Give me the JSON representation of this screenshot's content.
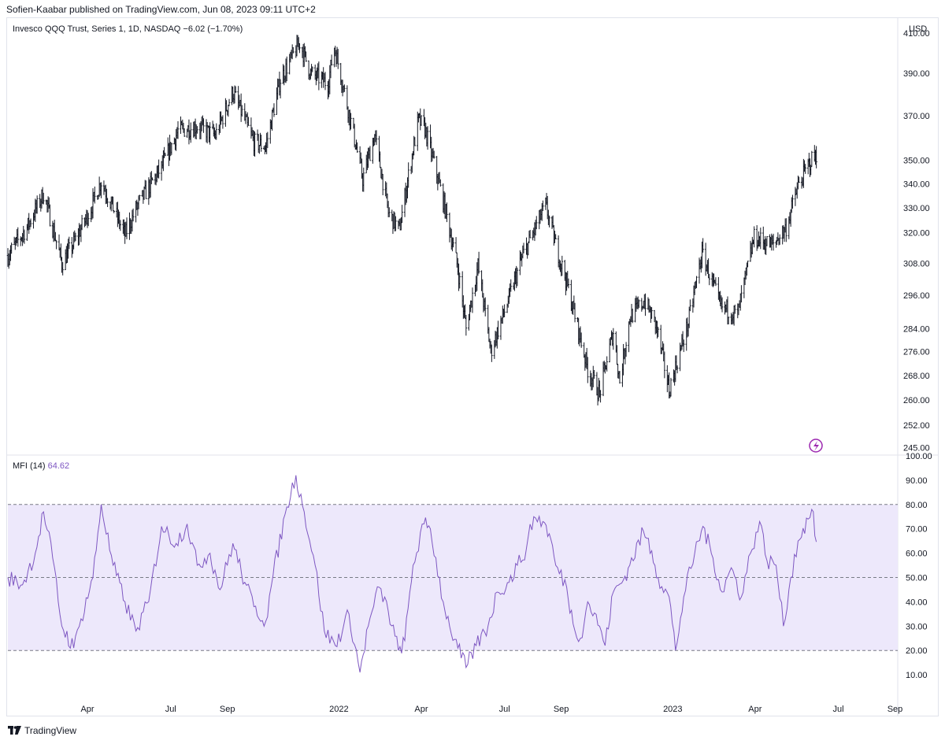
{
  "header": {
    "published": "Sofien-Kaabar published on TradingView.com, Jun 08, 2023 09:11 UTC+2"
  },
  "footer": {
    "brand": "TradingView"
  },
  "colors": {
    "bars": "#131722",
    "mfi_line": "#7e57c2",
    "band_fill": "#ede8fb",
    "lightning": "#9c27b0",
    "grid": "#e0e3eb"
  },
  "icons": {
    "lightning": "lightning-icon",
    "logo": "tradingview-logo-icon"
  },
  "chart_data": [
    {
      "type": "ohlc",
      "title": "Invesco QQQ Trust, Series 1, 1D, NASDAQ",
      "change": "−6.02 (−1.70%)",
      "currency": "USD",
      "y_scale": "log",
      "ylim": [
        243,
        418
      ],
      "y_ticks": [
        "410.00",
        "390.00",
        "370.00",
        "350.00",
        "340.00",
        "330.00",
        "320.00",
        "308.00",
        "296.00",
        "284.00",
        "276.00",
        "268.00",
        "260.00",
        "252.00",
        "245.00"
      ],
      "x_ticks": [
        "Apr",
        "Jul",
        "Sep",
        "2022",
        "Apr",
        "Jul",
        "Sep",
        "2023",
        "Apr",
        "Jul",
        "Sep"
      ],
      "x_tick_dates": [
        "2021-04-01",
        "2021-07-01",
        "2021-09-01",
        "2022-01-01",
        "2022-04-01",
        "2022-07-01",
        "2022-09-01",
        "2023-01-01",
        "2023-04-01",
        "2023-07-01",
        "2023-09-01"
      ],
      "x_range": [
        "2021-01-04",
        "2023-09-04"
      ],
      "series": [
        {
          "values": [
            [
              "2021-01-04",
              311
            ],
            [
              "2021-01-25",
              322
            ],
            [
              "2021-02-12",
              336
            ],
            [
              "2021-03-04",
              308
            ],
            [
              "2021-03-19",
              317
            ],
            [
              "2021-04-05",
              330
            ],
            [
              "2021-04-16",
              341
            ],
            [
              "2021-05-12",
              319
            ],
            [
              "2021-05-26",
              331
            ],
            [
              "2021-06-21",
              347
            ],
            [
              "2021-07-09",
              363
            ],
            [
              "2021-07-30",
              365
            ],
            [
              "2021-08-19",
              361
            ],
            [
              "2021-09-07",
              381
            ],
            [
              "2021-09-30",
              358
            ],
            [
              "2021-10-13",
              356
            ],
            [
              "2021-10-29",
              387
            ],
            [
              "2021-11-19",
              405
            ],
            [
              "2021-12-01",
              390
            ],
            [
              "2021-12-20",
              385
            ],
            [
              "2021-12-27",
              403
            ],
            [
              "2022-01-10",
              375
            ],
            [
              "2022-01-27",
              342
            ],
            [
              "2022-02-09",
              361
            ],
            [
              "2022-02-24",
              328
            ],
            [
              "2022-03-08",
              321
            ],
            [
              "2022-03-29",
              368
            ],
            [
              "2022-04-05",
              364
            ],
            [
              "2022-04-25",
              333
            ],
            [
              "2022-05-11",
              306
            ],
            [
              "2022-05-20",
              284
            ],
            [
              "2022-06-02",
              307
            ],
            [
              "2022-06-16",
              276
            ],
            [
              "2022-07-06",
              295
            ],
            [
              "2022-07-20",
              310
            ],
            [
              "2022-08-15",
              331
            ],
            [
              "2022-08-26",
              315
            ],
            [
              "2022-09-06",
              302
            ],
            [
              "2022-09-30",
              270
            ],
            [
              "2022-10-13",
              262
            ],
            [
              "2022-10-28",
              283
            ],
            [
              "2022-11-04",
              266
            ],
            [
              "2022-11-15",
              288
            ],
            [
              "2022-12-01",
              294
            ],
            [
              "2022-12-14",
              285
            ],
            [
              "2022-12-28",
              263
            ],
            [
              "2023-01-18",
              286
            ],
            [
              "2023-02-02",
              312
            ],
            [
              "2023-02-22",
              292
            ],
            [
              "2023-03-13",
              289
            ],
            [
              "2023-03-31",
              318
            ],
            [
              "2023-04-20",
              315
            ],
            [
              "2023-05-05",
              322
            ],
            [
              "2023-05-18",
              339
            ],
            [
              "2023-06-01",
              350
            ],
            [
              "2023-06-07",
              352
            ]
          ]
        }
      ]
    },
    {
      "type": "line",
      "title": "MFI (14)",
      "last_value": "64.62",
      "ylim": [
        0,
        100
      ],
      "y_ticks": [
        "100.00",
        "90.00",
        "80.00",
        "70.00",
        "60.00",
        "50.00",
        "40.00",
        "30.00",
        "20.00",
        "10.00"
      ],
      "bands": {
        "upper": 80,
        "middle": 50,
        "lower": 20
      },
      "series": [
        {
          "values": [
            [
              "2021-01-04",
              50
            ],
            [
              "2021-01-20",
              47
            ],
            [
              "2021-02-03",
              60
            ],
            [
              "2021-02-12",
              77
            ],
            [
              "2021-02-22",
              58
            ],
            [
              "2021-03-04",
              30
            ],
            [
              "2021-03-17",
              21
            ],
            [
              "2021-03-25",
              33
            ],
            [
              "2021-04-07",
              50
            ],
            [
              "2021-04-16",
              80
            ],
            [
              "2021-04-29",
              55
            ],
            [
              "2021-05-12",
              40
            ],
            [
              "2021-05-24",
              28
            ],
            [
              "2021-06-07",
              40
            ],
            [
              "2021-06-21",
              71
            ],
            [
              "2021-07-07",
              64
            ],
            [
              "2021-07-19",
              72
            ],
            [
              "2021-07-30",
              55
            ],
            [
              "2021-08-13",
              60
            ],
            [
              "2021-08-24",
              45
            ],
            [
              "2021-09-07",
              64
            ],
            [
              "2021-09-20",
              48
            ],
            [
              "2021-09-30",
              38
            ],
            [
              "2021-10-13",
              32
            ],
            [
              "2021-10-21",
              51
            ],
            [
              "2021-11-05",
              79
            ],
            [
              "2021-11-15",
              92
            ],
            [
              "2021-11-24",
              77
            ],
            [
              "2021-12-06",
              55
            ],
            [
              "2021-12-16",
              28
            ],
            [
              "2021-12-28",
              22
            ],
            [
              "2022-01-12",
              35
            ],
            [
              "2022-01-24",
              11
            ],
            [
              "2022-02-02",
              30
            ],
            [
              "2022-02-14",
              46
            ],
            [
              "2022-02-24",
              36
            ],
            [
              "2022-03-07",
              20
            ],
            [
              "2022-03-14",
              24
            ],
            [
              "2022-03-23",
              55
            ],
            [
              "2022-04-04",
              72
            ],
            [
              "2022-04-11",
              70
            ],
            [
              "2022-04-25",
              40
            ],
            [
              "2022-05-02",
              30
            ],
            [
              "2022-05-11",
              21
            ],
            [
              "2022-05-20",
              13
            ],
            [
              "2022-05-31",
              22
            ],
            [
              "2022-06-13",
              30
            ],
            [
              "2022-06-23",
              44
            ],
            [
              "2022-07-06",
              48
            ],
            [
              "2022-07-15",
              55
            ],
            [
              "2022-07-25",
              62
            ],
            [
              "2022-08-02",
              75
            ],
            [
              "2022-08-12",
              73
            ],
            [
              "2022-08-19",
              68
            ],
            [
              "2022-08-26",
              55
            ],
            [
              "2022-09-07",
              46
            ],
            [
              "2022-09-14",
              31
            ],
            [
              "2022-09-22",
              25
            ],
            [
              "2022-09-30",
              40
            ],
            [
              "2022-10-13",
              30
            ],
            [
              "2022-10-19",
              22
            ],
            [
              "2022-10-28",
              44
            ],
            [
              "2022-11-08",
              49
            ],
            [
              "2022-11-15",
              55
            ],
            [
              "2022-11-30",
              69
            ],
            [
              "2022-12-09",
              61
            ],
            [
              "2022-12-16",
              50
            ],
            [
              "2022-12-28",
              42
            ],
            [
              "2023-01-04",
              20
            ],
            [
              "2023-01-13",
              42
            ],
            [
              "2023-01-25",
              60
            ],
            [
              "2023-02-03",
              71
            ],
            [
              "2023-02-14",
              58
            ],
            [
              "2023-02-24",
              44
            ],
            [
              "2023-03-06",
              54
            ],
            [
              "2023-03-17",
              42
            ],
            [
              "2023-03-27",
              60
            ],
            [
              "2023-04-06",
              73
            ],
            [
              "2023-04-14",
              57
            ],
            [
              "2023-04-24",
              55
            ],
            [
              "2023-05-02",
              30
            ],
            [
              "2023-05-10",
              50
            ],
            [
              "2023-05-18",
              65
            ],
            [
              "2023-05-29",
              74
            ],
            [
              "2023-06-02",
              78
            ],
            [
              "2023-06-07",
              64.62
            ]
          ]
        }
      ]
    }
  ]
}
